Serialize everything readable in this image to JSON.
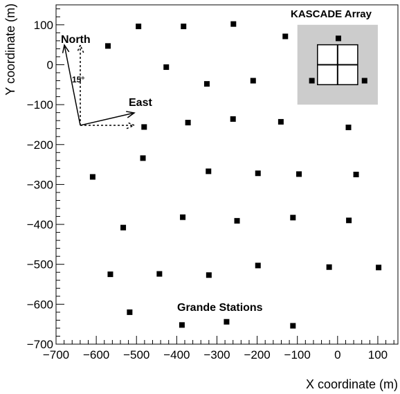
{
  "chart_data": {
    "type": "scatter",
    "xlabel": "X coordinate (m)",
    "ylabel": "Y coordinate (m)",
    "xlim": [
      -700,
      150
    ],
    "ylim": [
      -700,
      150
    ],
    "x_ticks": [
      -700,
      -600,
      -500,
      -400,
      -300,
      -200,
      -100,
      0,
      100
    ],
    "y_ticks": [
      -700,
      -600,
      -500,
      -400,
      -300,
      -200,
      -100,
      0,
      100
    ],
    "x_tick_labels": [
      "−700",
      "−600",
      "−500",
      "−400",
      "−300",
      "−200",
      "−100",
      "0",
      "100"
    ],
    "y_tick_labels": [
      "−700",
      "−600",
      "−500",
      "−400",
      "−300",
      "−200",
      "−100",
      "0",
      "100"
    ],
    "grid": false,
    "marker": "square",
    "marker_color": "#000000",
    "series": [
      {
        "points": [
          [
            -571,
            47
          ],
          [
            -495,
            96
          ],
          [
            -383,
            96
          ],
          [
            -259,
            102
          ],
          [
            -130,
            71
          ],
          [
            2,
            66
          ],
          [
            -426,
            -6
          ],
          [
            -325,
            -48
          ],
          [
            -210,
            -40
          ],
          [
            -64,
            -40
          ],
          [
            67,
            -40
          ],
          [
            -481,
            -156
          ],
          [
            -372,
            -145
          ],
          [
            -260,
            -136
          ],
          [
            -141,
            -143
          ],
          [
            27,
            -157
          ],
          [
            -484,
            -234
          ],
          [
            -609,
            -281
          ],
          [
            -321,
            -267
          ],
          [
            -198,
            -272
          ],
          [
            -96,
            -274
          ],
          [
            46,
            -275
          ],
          [
            -533,
            -408
          ],
          [
            -385,
            -382
          ],
          [
            -250,
            -391
          ],
          [
            -111,
            -383
          ],
          [
            28,
            -390
          ],
          [
            -565,
            -525
          ],
          [
            -443,
            -524
          ],
          [
            -320,
            -527
          ],
          [
            -198,
            -503
          ],
          [
            -21,
            -507
          ],
          [
            102,
            -508
          ],
          [
            -517,
            -620
          ],
          [
            -387,
            -652
          ],
          [
            -276,
            -644
          ],
          [
            -111,
            -654
          ]
        ]
      }
    ],
    "annotations": {
      "north": "North",
      "east": "East",
      "angle": "15°",
      "kascade": "KASCADE Array",
      "grande": "Grande Stations"
    },
    "kascade_box": {
      "x0": -100,
      "x1": 100,
      "y0": 100,
      "y1": -100,
      "fill": "#cccccc"
    },
    "kascade_grid": {
      "x0": -50,
      "x1": 50,
      "y0": 50,
      "y1": -50
    }
  }
}
